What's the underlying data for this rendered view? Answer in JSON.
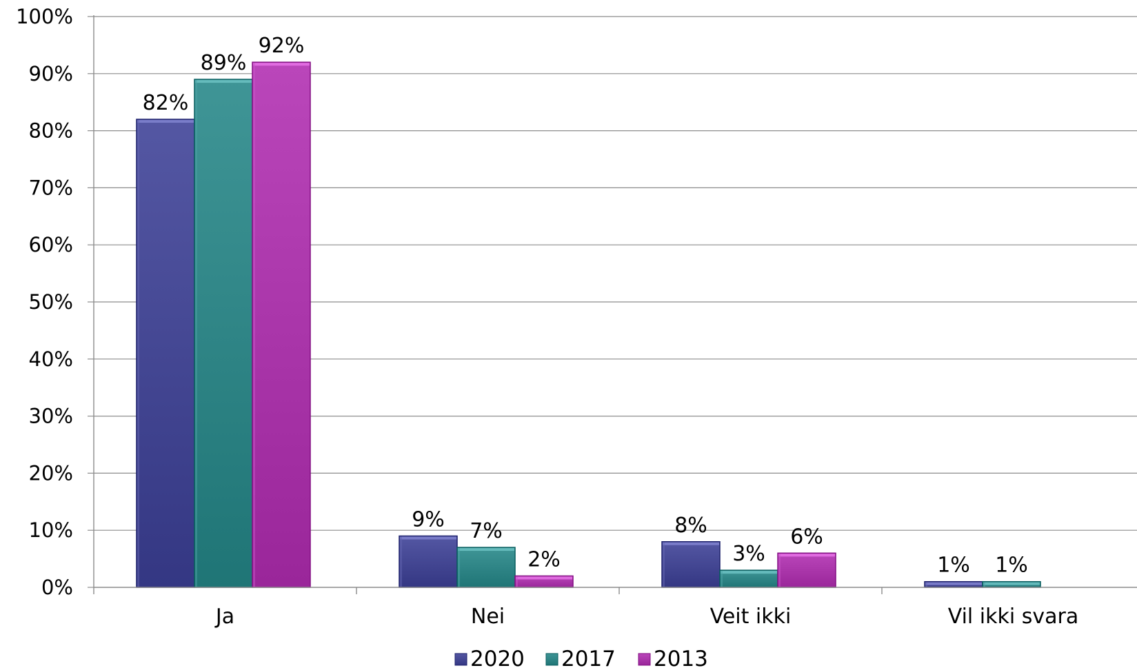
{
  "chart_data": {
    "type": "bar",
    "categories": [
      "Ja",
      "Nei",
      "Veit ikki",
      "Vil ikki svara"
    ],
    "series": [
      {
        "name": "2020",
        "values": [
          82,
          9,
          8,
          1
        ],
        "labels": [
          "82%",
          "9%",
          "8%",
          "1%"
        ],
        "color": "#4a4d99"
      },
      {
        "name": "2017",
        "values": [
          89,
          7,
          3,
          1
        ],
        "labels": [
          "89%",
          "7%",
          "3%",
          "1%"
        ],
        "color": "#358b8c"
      },
      {
        "name": "2013",
        "values": [
          92,
          2,
          6,
          null
        ],
        "labels": [
          "92%",
          "2%",
          "6%",
          ""
        ],
        "color": "#b03cb0"
      }
    ],
    "y_ticks": [
      "0%",
      "10%",
      "20%",
      "30%",
      "40%",
      "50%",
      "60%",
      "70%",
      "80%",
      "90%",
      "100%"
    ],
    "ylim": [
      0,
      100
    ],
    "grid": true,
    "legend": "bottom",
    "title": "",
    "xlabel": "",
    "ylabel": ""
  }
}
